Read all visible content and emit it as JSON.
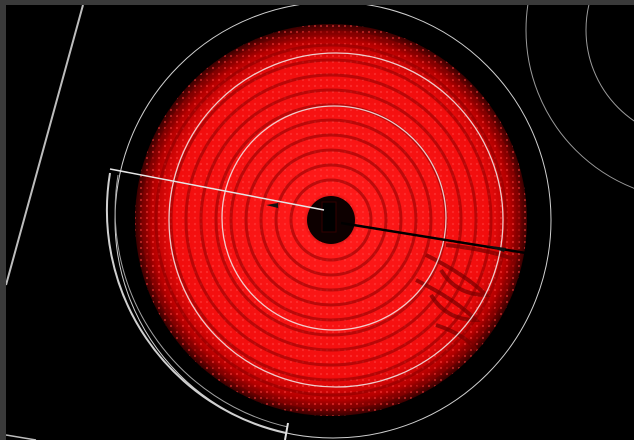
{
  "image": {
    "subject": "glowing-radiant-cooktop-burner",
    "colors": {
      "frame": "#3a3a3a",
      "background": "#000000",
      "glow_core": "#ff1a1a",
      "glow_mid": "#e00000",
      "glow_edge": "#5a0000",
      "guide_line": "#d8d8d8"
    }
  }
}
